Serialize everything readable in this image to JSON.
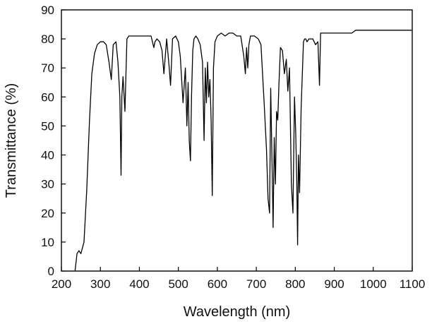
{
  "chart_data": {
    "type": "line",
    "xlabel": "Wavelength (nm)",
    "ylabel": "Transmittance (%)",
    "xlim": [
      200,
      1100
    ],
    "ylim": [
      0,
      90
    ],
    "xticks": [
      200,
      300,
      400,
      500,
      600,
      700,
      800,
      900,
      1000,
      1100
    ],
    "yticks": [
      0,
      10,
      20,
      30,
      40,
      50,
      60,
      70,
      80,
      90
    ],
    "grid": false,
    "legend": "none",
    "line_color": "#000000",
    "series": [
      {
        "x": [
          235,
          240,
          245,
          250,
          258,
          265,
          272,
          278,
          285,
          292,
          300,
          308,
          315,
          322,
          328,
          333,
          340,
          345,
          350,
          353,
          355,
          358,
          361,
          363,
          368,
          373,
          380,
          390,
          400,
          410,
          420,
          430,
          437,
          440,
          445,
          452,
          458,
          463,
          470,
          476,
          480,
          485,
          493,
          500,
          505,
          512,
          518,
          522,
          525,
          528,
          531,
          534,
          537,
          540,
          545,
          550,
          556,
          562,
          566,
          569,
          572,
          575,
          578,
          581,
          584,
          587,
          590,
          594,
          600,
          610,
          620,
          630,
          640,
          650,
          660,
          668,
          672,
          675,
          678,
          681,
          685,
          695,
          705,
          712,
          720,
          726,
          730,
          734,
          737,
          740,
          743,
          746,
          749,
          752,
          755,
          758,
          762,
          767,
          772,
          777,
          781,
          785,
          790,
          794,
          798,
          801,
          804,
          806,
          808,
          811,
          815,
          818,
          821,
          824,
          827,
          830,
          835,
          845,
          852,
          858,
          862,
          865,
          868,
          872,
          878,
          885,
          895,
          905,
          915,
          925,
          935,
          945,
          955,
          970,
          1000,
          1050,
          1100
        ],
        "y": [
          0,
          6,
          7,
          6,
          10,
          28,
          52,
          68,
          75,
          78,
          79,
          79,
          78,
          72,
          66,
          78,
          79,
          72,
          60,
          33,
          60,
          67,
          60,
          55,
          80,
          81,
          81,
          81,
          81,
          81,
          81,
          81,
          77,
          79,
          80,
          79,
          76,
          68,
          80,
          71,
          64,
          80,
          81,
          79,
          74,
          58,
          70,
          50,
          65,
          45,
          38,
          61,
          76,
          80,
          81,
          80,
          78,
          72,
          45,
          70,
          58,
          72,
          60,
          66,
          52,
          26,
          70,
          79,
          81,
          82,
          81,
          82,
          82,
          81,
          81,
          74,
          68,
          77,
          70,
          78,
          81,
          81,
          80,
          78,
          58,
          42,
          25,
          20,
          63,
          40,
          15,
          46,
          30,
          55,
          52,
          64,
          77,
          76,
          68,
          73,
          62,
          70,
          30,
          20,
          60,
          48,
          30,
          9,
          40,
          27,
          56,
          68,
          79,
          80,
          80,
          79,
          80,
          80,
          78,
          79,
          64,
          82,
          82,
          82,
          82,
          82,
          82,
          82,
          82,
          82,
          82,
          82,
          83,
          83,
          83,
          83,
          83
        ]
      }
    ]
  }
}
